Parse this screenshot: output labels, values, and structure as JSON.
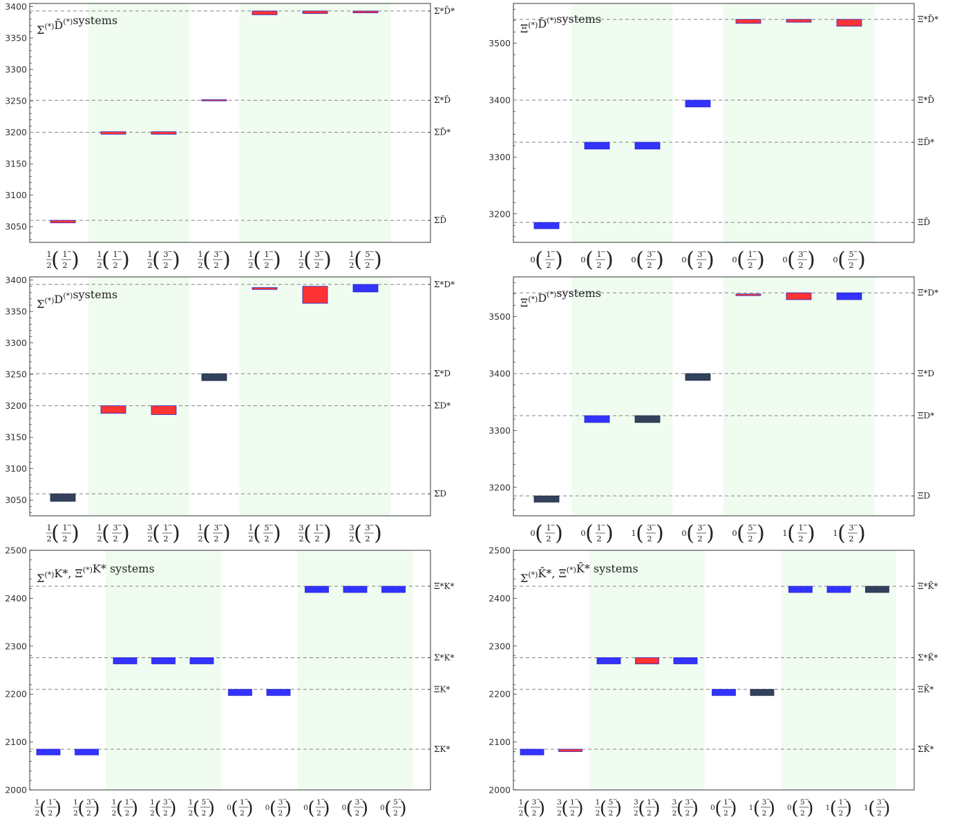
{
  "colors": {
    "red": "#fe3333",
    "blue": "#3333fe",
    "navy": "#33415c",
    "border_blue": "#2828c8",
    "band": "#f0fcf0",
    "dash": "#7f7f7f"
  },
  "panels": [
    {
      "title": "Σ(*)D̄(*) systems",
      "title_tex": [
        "Σ",
        "(*)",
        "D̄",
        "(*)",
        "systems"
      ],
      "ylim": [
        3025,
        3405
      ],
      "yticks": [
        3050,
        3100,
        3150,
        3200,
        3250,
        3300,
        3350,
        3400
      ],
      "thresholds": [
        {
          "value": 3060,
          "label": "ΣD̄"
        },
        {
          "value": 3200,
          "label": "ΣD̄*"
        },
        {
          "value": 3251,
          "label": "Σ*D̄"
        },
        {
          "value": 3393,
          "label": "Σ*D̄*"
        }
      ],
      "categories": [
        {
          "I": "1/2",
          "J": "1/2"
        },
        {
          "I": "1/2",
          "J": "1/2"
        },
        {
          "I": "1/2",
          "J": "3/2"
        },
        {
          "I": "1/2",
          "J": "3/2"
        },
        {
          "I": "1/2",
          "J": "1/2"
        },
        {
          "I": "1/2",
          "J": "3/2"
        },
        {
          "I": "1/2",
          "J": "5/2"
        }
      ],
      "bands": [
        [
          1,
          2
        ],
        [
          4,
          6
        ]
      ],
      "bars": [
        {
          "x": 0,
          "lo": 3056,
          "hi": 3060,
          "color": "red"
        },
        {
          "x": 1,
          "lo": 3197,
          "hi": 3201,
          "color": "red"
        },
        {
          "x": 2,
          "lo": 3197,
          "hi": 3201,
          "color": "red"
        },
        {
          "x": 3,
          "lo": 3250,
          "hi": 3252,
          "color": "red"
        },
        {
          "x": 4,
          "lo": 3387,
          "hi": 3393,
          "color": "red"
        },
        {
          "x": 5,
          "lo": 3389,
          "hi": 3393,
          "color": "red"
        },
        {
          "x": 6,
          "lo": 3390,
          "hi": 3393,
          "color": "red"
        }
      ]
    },
    {
      "title": "Ξ(*)D̄(*) systems",
      "title_tex": [
        "Ξ",
        "(*)",
        "D̄",
        "(*)",
        "systems"
      ],
      "ylim": [
        3150,
        3570
      ],
      "yticks": [
        3200,
        3300,
        3400,
        3500
      ],
      "thresholds": [
        {
          "value": 3185,
          "label": "ΞD̄"
        },
        {
          "value": 3326,
          "label": "ΞD̄*"
        },
        {
          "value": 3400,
          "label": "Ξ*D̄"
        },
        {
          "value": 3542,
          "label": "Ξ*D̄*"
        }
      ],
      "categories": [
        {
          "I": "0",
          "J": "1/2"
        },
        {
          "I": "0",
          "J": "1/2"
        },
        {
          "I": "0",
          "J": "3/2"
        },
        {
          "I": "0",
          "J": "3/2"
        },
        {
          "I": "0",
          "J": "1/2"
        },
        {
          "I": "0",
          "J": "3/2"
        },
        {
          "I": "0",
          "J": "5/2"
        }
      ],
      "bands": [
        [
          1,
          2
        ],
        [
          4,
          6
        ]
      ],
      "bars": [
        {
          "x": 0,
          "lo": 3174,
          "hi": 3185,
          "color": "blue"
        },
        {
          "x": 1,
          "lo": 3314,
          "hi": 3326,
          "color": "blue"
        },
        {
          "x": 2,
          "lo": 3314,
          "hi": 3326,
          "color": "blue"
        },
        {
          "x": 3,
          "lo": 3388,
          "hi": 3400,
          "color": "blue"
        },
        {
          "x": 4,
          "lo": 3535,
          "hi": 3542,
          "color": "red"
        },
        {
          "x": 5,
          "lo": 3537,
          "hi": 3542,
          "color": "red"
        },
        {
          "x": 6,
          "lo": 3530,
          "hi": 3542,
          "color": "red"
        }
      ]
    },
    {
      "title": "Σ(*)D(*) systems",
      "title_tex": [
        "Σ",
        "(*)",
        "D",
        "(*)",
        "systems"
      ],
      "ylim": [
        3025,
        3405
      ],
      "yticks": [
        3050,
        3100,
        3150,
        3200,
        3250,
        3300,
        3350,
        3400
      ],
      "thresholds": [
        {
          "value": 3060,
          "label": "ΣD"
        },
        {
          "value": 3200,
          "label": "ΣD*"
        },
        {
          "value": 3251,
          "label": "Σ*D"
        },
        {
          "value": 3393,
          "label": "Σ*D*"
        }
      ],
      "categories": [
        {
          "I": "1/2",
          "J": "1/2"
        },
        {
          "I": "1/2",
          "J": "3/2"
        },
        {
          "I": "3/2",
          "J": "1/2"
        },
        {
          "I": "1/2",
          "J": "3/2"
        },
        {
          "I": "1/2",
          "J": "5/2"
        },
        {
          "I": "3/2",
          "J": "1/2"
        },
        {
          "I": "3/2",
          "J": "3/2"
        }
      ],
      "bands": [
        [
          1,
          2
        ],
        [
          4,
          6
        ]
      ],
      "bars": [
        {
          "x": 0,
          "lo": 3048,
          "hi": 3060,
          "color": "navy"
        },
        {
          "x": 1,
          "lo": 3188,
          "hi": 3200,
          "color": "red"
        },
        {
          "x": 2,
          "lo": 3186,
          "hi": 3200,
          "color": "red"
        },
        {
          "x": 3,
          "lo": 3240,
          "hi": 3251,
          "color": "navy"
        },
        {
          "x": 4,
          "lo": 3385,
          "hi": 3388,
          "color": "red"
        },
        {
          "x": 5,
          "lo": 3363,
          "hi": 3390,
          "color": "red"
        },
        {
          "x": 6,
          "lo": 3381,
          "hi": 3393,
          "color": "blue"
        }
      ]
    },
    {
      "title": "Ξ(*)D(*) systems",
      "title_tex": [
        "Ξ",
        "(*)",
        "D",
        "(*)",
        "systems"
      ],
      "ylim": [
        3150,
        3570
      ],
      "yticks": [
        3200,
        3300,
        3400,
        3500
      ],
      "thresholds": [
        {
          "value": 3185,
          "label": "ΞD"
        },
        {
          "value": 3326,
          "label": "ΞD*"
        },
        {
          "value": 3400,
          "label": "Ξ*D"
        },
        {
          "value": 3542,
          "label": "Ξ*D*"
        }
      ],
      "categories": [
        {
          "I": "0",
          "J": "1/2"
        },
        {
          "I": "0",
          "J": "1/2"
        },
        {
          "I": "1",
          "J": "3/2"
        },
        {
          "I": "0",
          "J": "3/2"
        },
        {
          "I": "0",
          "J": "5/2"
        },
        {
          "I": "1",
          "J": "1/2"
        },
        {
          "I": "1",
          "J": "3/2"
        }
      ],
      "bands": [
        [
          1,
          2
        ],
        [
          4,
          6
        ]
      ],
      "bars": [
        {
          "x": 0,
          "lo": 3174,
          "hi": 3185,
          "color": "navy"
        },
        {
          "x": 1,
          "lo": 3314,
          "hi": 3326,
          "color": "blue"
        },
        {
          "x": 2,
          "lo": 3314,
          "hi": 3326,
          "color": "navy"
        },
        {
          "x": 3,
          "lo": 3388,
          "hi": 3400,
          "color": "navy"
        },
        {
          "x": 4,
          "lo": 3537,
          "hi": 3540,
          "color": "red"
        },
        {
          "x": 5,
          "lo": 3530,
          "hi": 3542,
          "color": "red"
        },
        {
          "x": 6,
          "lo": 3530,
          "hi": 3542,
          "color": "blue"
        }
      ]
    },
    {
      "title": "Σ(*)K*, Ξ(*)K* systems",
      "title_tex": [
        "Σ",
        "(*)",
        "K*,",
        "Ξ",
        "(*)",
        "K*",
        "systems"
      ],
      "ylim": [
        2000,
        2500
      ],
      "yticks": [
        2000,
        2100,
        2200,
        2300,
        2400,
        2500
      ],
      "thresholds": [
        {
          "value": 2085,
          "label": "ΣK*"
        },
        {
          "value": 2210,
          "label": "ΞK*"
        },
        {
          "value": 2276,
          "label": "Σ*K*"
        },
        {
          "value": 2425,
          "label": "Ξ*K*"
        }
      ],
      "categories": [
        {
          "I": "1/2",
          "J": "1/2"
        },
        {
          "I": "1/2",
          "J": "3/2"
        },
        {
          "I": "1/2",
          "J": "1/2"
        },
        {
          "I": "1/2",
          "J": "3/2"
        },
        {
          "I": "1/2",
          "J": "5/2"
        },
        {
          "I": "0",
          "J": "1/2"
        },
        {
          "I": "0",
          "J": "3/2"
        },
        {
          "I": "0",
          "J": "1/2"
        },
        {
          "I": "0",
          "J": "3/2"
        },
        {
          "I": "0",
          "J": "5/2"
        }
      ],
      "bands": [
        [
          2,
          4
        ],
        [
          7,
          9
        ]
      ],
      "bars": [
        {
          "x": 0,
          "lo": 2073,
          "hi": 2085,
          "color": "blue"
        },
        {
          "x": 1,
          "lo": 2073,
          "hi": 2085,
          "color": "blue"
        },
        {
          "x": 2,
          "lo": 2263,
          "hi": 2276,
          "color": "blue"
        },
        {
          "x": 3,
          "lo": 2263,
          "hi": 2276,
          "color": "blue"
        },
        {
          "x": 4,
          "lo": 2263,
          "hi": 2276,
          "color": "blue"
        },
        {
          "x": 5,
          "lo": 2197,
          "hi": 2210,
          "color": "blue"
        },
        {
          "x": 6,
          "lo": 2197,
          "hi": 2210,
          "color": "blue"
        },
        {
          "x": 7,
          "lo": 2412,
          "hi": 2425,
          "color": "blue"
        },
        {
          "x": 8,
          "lo": 2412,
          "hi": 2425,
          "color": "blue"
        },
        {
          "x": 9,
          "lo": 2412,
          "hi": 2425,
          "color": "blue"
        }
      ]
    },
    {
      "title": "Σ(*)K̄*, Ξ(*)K̄* systems",
      "title_tex": [
        "Σ",
        "(*)",
        "K̄*,",
        "Ξ",
        "(*)",
        "K̄*",
        "systems"
      ],
      "ylim": [
        2000,
        2500
      ],
      "yticks": [
        2000,
        2100,
        2200,
        2300,
        2400,
        2500
      ],
      "thresholds": [
        {
          "value": 2085,
          "label": "ΣK̄*"
        },
        {
          "value": 2210,
          "label": "ΞK̄*"
        },
        {
          "value": 2276,
          "label": "Σ*K̄*"
        },
        {
          "value": 2425,
          "label": "Ξ*K̄*"
        }
      ],
      "categories": [
        {
          "I": "1/2",
          "J": "3/2"
        },
        {
          "I": "3/2",
          "J": "1/2"
        },
        {
          "I": "1/2",
          "J": "5/2"
        },
        {
          "I": "3/2",
          "J": "1/2"
        },
        {
          "I": "3/2",
          "J": "3/2"
        },
        {
          "I": "0",
          "J": "1/2"
        },
        {
          "I": "1",
          "J": "3/2"
        },
        {
          "I": "0",
          "J": "5/2"
        },
        {
          "I": "1",
          "J": "1/2"
        },
        {
          "I": "1",
          "J": "3/2"
        }
      ],
      "bands": [
        [
          2,
          4
        ],
        [
          7,
          9
        ]
      ],
      "bars": [
        {
          "x": 0,
          "lo": 2073,
          "hi": 2085,
          "color": "blue"
        },
        {
          "x": 1,
          "lo": 2080,
          "hi": 2085,
          "color": "red"
        },
        {
          "x": 2,
          "lo": 2263,
          "hi": 2276,
          "color": "blue"
        },
        {
          "x": 3,
          "lo": 2263,
          "hi": 2276,
          "color": "red"
        },
        {
          "x": 4,
          "lo": 2263,
          "hi": 2276,
          "color": "blue"
        },
        {
          "x": 5,
          "lo": 2197,
          "hi": 2210,
          "color": "blue"
        },
        {
          "x": 6,
          "lo": 2197,
          "hi": 2210,
          "color": "navy"
        },
        {
          "x": 7,
          "lo": 2412,
          "hi": 2425,
          "color": "blue"
        },
        {
          "x": 8,
          "lo": 2412,
          "hi": 2425,
          "color": "blue"
        },
        {
          "x": 9,
          "lo": 2412,
          "hi": 2425,
          "color": "navy"
        }
      ]
    }
  ],
  "chart_data": [
    {
      "type": "bar",
      "title": "Σ(*)D̄(*) systems",
      "ylim": [
        3025,
        3405
      ],
      "categories": [
        "1/2(1/2−)",
        "1/2(1/2−)",
        "1/2(3/2−)",
        "1/2(3/2−)",
        "1/2(1/2−)",
        "1/2(3/2−)",
        "1/2(5/2−)"
      ],
      "ranges": [
        [
          3056,
          3060
        ],
        [
          3197,
          3201
        ],
        [
          3197,
          3201
        ],
        [
          3250,
          3252
        ],
        [
          3387,
          3393
        ],
        [
          3389,
          3393
        ],
        [
          3390,
          3393
        ]
      ],
      "thresholds": {
        "ΣD̄": 3060,
        "ΣD̄*": 3200,
        "Σ*D̄": 3251,
        "Σ*D̄*": 3393
      }
    },
    {
      "type": "bar",
      "title": "Ξ(*)D̄(*) systems",
      "ylim": [
        3150,
        3570
      ],
      "categories": [
        "0(1/2−)",
        "0(1/2−)",
        "0(3/2−)",
        "0(3/2−)",
        "0(1/2−)",
        "0(3/2−)",
        "0(5/2−)"
      ],
      "ranges": [
        [
          3174,
          3185
        ],
        [
          3314,
          3326
        ],
        [
          3314,
          3326
        ],
        [
          3388,
          3400
        ],
        [
          3535,
          3542
        ],
        [
          3537,
          3542
        ],
        [
          3530,
          3542
        ]
      ],
      "thresholds": {
        "ΞD̄": 3185,
        "ΞD̄*": 3326,
        "Ξ*D̄": 3400,
        "Ξ*D̄*": 3542
      }
    },
    {
      "type": "bar",
      "title": "Σ(*)D(*) systems",
      "ylim": [
        3025,
        3405
      ],
      "categories": [
        "1/2(1/2−)",
        "1/2(3/2−)",
        "3/2(1/2−)",
        "1/2(3/2−)",
        "1/2(5/2−)",
        "3/2(1/2−)",
        "3/2(3/2−)"
      ],
      "ranges": [
        [
          3048,
          3060
        ],
        [
          3188,
          3200
        ],
        [
          3186,
          3200
        ],
        [
          3240,
          3251
        ],
        [
          3385,
          3388
        ],
        [
          3363,
          3390
        ],
        [
          3381,
          3393
        ]
      ],
      "thresholds": {
        "ΣD": 3060,
        "ΣD*": 3200,
        "Σ*D": 3251,
        "Σ*D*": 3393
      }
    },
    {
      "type": "bar",
      "title": "Ξ(*)D(*) systems",
      "ylim": [
        3150,
        3570
      ],
      "categories": [
        "0(1/2−)",
        "0(1/2−)",
        "1(3/2−)",
        "0(3/2−)",
        "0(5/2−)",
        "1(1/2−)",
        "1(3/2−)"
      ],
      "ranges": [
        [
          3174,
          3185
        ],
        [
          3314,
          3326
        ],
        [
          3314,
          3326
        ],
        [
          3388,
          3400
        ],
        [
          3537,
          3540
        ],
        [
          3530,
          3542
        ],
        [
          3530,
          3542
        ]
      ],
      "thresholds": {
        "ΞD": 3185,
        "ΞD*": 3326,
        "Ξ*D": 3400,
        "Ξ*D*": 3542
      }
    },
    {
      "type": "bar",
      "title": "Σ(*)K*, Ξ(*)K* systems",
      "ylim": [
        2000,
        2500
      ],
      "categories": [
        "1/2(1/2−)",
        "1/2(3/2−)",
        "1/2(1/2−)",
        "1/2(3/2−)",
        "1/2(5/2−)",
        "0(1/2−)",
        "0(3/2−)",
        "0(1/2−)",
        "0(3/2−)",
        "0(5/2−)"
      ],
      "ranges": [
        [
          2073,
          2085
        ],
        [
          2073,
          2085
        ],
        [
          2263,
          2276
        ],
        [
          2263,
          2276
        ],
        [
          2263,
          2276
        ],
        [
          2197,
          2210
        ],
        [
          2197,
          2210
        ],
        [
          2412,
          2425
        ],
        [
          2412,
          2425
        ],
        [
          2412,
          2425
        ]
      ],
      "thresholds": {
        "ΣK*": 2085,
        "ΞK*": 2210,
        "Σ*K*": 2276,
        "Ξ*K*": 2425
      }
    },
    {
      "type": "bar",
      "title": "Σ(*)K̄*, Ξ(*)K̄* systems",
      "ylim": [
        2000,
        2500
      ],
      "categories": [
        "1/2(3/2−)",
        "3/2(1/2−)",
        "1/2(5/2−)",
        "3/2(1/2−)",
        "3/2(3/2−)",
        "0(1/2−)",
        "1(3/2−)",
        "0(5/2−)",
        "1(1/2−)",
        "1(3/2−)"
      ],
      "ranges": [
        [
          2073,
          2085
        ],
        [
          2080,
          2085
        ],
        [
          2263,
          2276
        ],
        [
          2263,
          2276
        ],
        [
          2263,
          2276
        ],
        [
          2197,
          2210
        ],
        [
          2197,
          2210
        ],
        [
          2412,
          2425
        ],
        [
          2412,
          2425
        ],
        [
          2412,
          2425
        ]
      ],
      "thresholds": {
        "ΣK̄*": 2085,
        "ΞK̄*": 2210,
        "Σ*K̄*": 2276,
        "Ξ*K̄*": 2425
      }
    }
  ]
}
